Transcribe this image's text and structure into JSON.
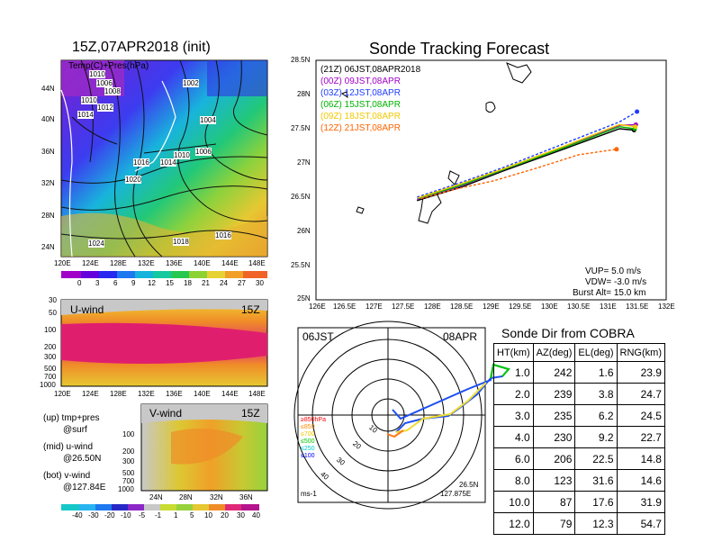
{
  "left": {
    "title": "15Z,07APR2018 (init)",
    "map_label": "Temp(C)+Pres(hPa)",
    "lat_labels": [
      "44N",
      "40N",
      "36N",
      "32N",
      "28N",
      "24N"
    ],
    "lon_labels": [
      "120E",
      "124E",
      "128E",
      "132E",
      "136E",
      "140E",
      "144E",
      "148E"
    ],
    "pressure_labels": [
      "1002",
      "1004",
      "1006",
      "1008",
      "1010",
      "1012",
      "1014",
      "1016",
      "1018",
      "1020",
      "1024",
      "1006",
      "1004",
      "1010",
      "1012",
      "1014",
      "1016",
      "1016"
    ],
    "temp_colorbar": [
      "0",
      "3",
      "6",
      "9",
      "12",
      "15",
      "18",
      "21",
      "24",
      "27",
      "30"
    ],
    "uwind_label": "U-wind",
    "uwind_time": "15Z",
    "vwind_label": "V-wind",
    "vwind_time": "15Z",
    "plev_labels": [
      "30",
      "50",
      "100",
      "200",
      "300",
      "500",
      "700",
      "1000"
    ],
    "vwind_plev_labels": [
      "100",
      "200",
      "300",
      "500",
      "700",
      "1000"
    ],
    "vwind_lat_labels": [
      "24N",
      "28N",
      "32N",
      "36N"
    ],
    "notes": [
      "(up) tmp+pres",
      "@surf",
      "(mid) u-wind",
      "@26.50N",
      "(bot) v-wind",
      "@127.84E"
    ],
    "wind_colorbar": [
      "-40",
      "-30",
      "-20",
      "-10",
      "-5",
      "-1",
      "1",
      "5",
      "10",
      "20",
      "30",
      "40"
    ]
  },
  "track": {
    "title": "Sonde Tracking Forecast",
    "lat_labels": [
      "28.5N",
      "28N",
      "27.5N",
      "27N",
      "26.5N",
      "26N",
      "25.5N",
      "25N"
    ],
    "lon_labels": [
      "126E",
      "126.5E",
      "127E",
      "127.5E",
      "128E",
      "128.5E",
      "129E",
      "129.5E",
      "130E",
      "130.5E",
      "131E",
      "131.5E",
      "132E"
    ],
    "legend": [
      {
        "text": "(21Z) 06JST,08APR2018",
        "color": "#000000"
      },
      {
        "text": "(00Z) 09JST,08APR",
        "color": "#a000c8"
      },
      {
        "text": "(03Z) 12JST,08APR",
        "color": "#1e3cff"
      },
      {
        "text": "(06Z) 15JST,08APR",
        "color": "#00b400"
      },
      {
        "text": "(09Z) 18JST,08APR",
        "color": "#f0c800"
      },
      {
        "text": "(12Z) 21JST,08APR",
        "color": "#ff6400"
      }
    ],
    "params": [
      "VUP= 5.0 m/s",
      "VDW= -3.0 m/s",
      "Burst Alt= 15.0 km"
    ]
  },
  "polar": {
    "time": "06JST",
    "date": "08APR",
    "unit": "ms-1",
    "lat": "26.5N",
    "lon": "127.875E",
    "ring_labels": [
      "10",
      "20",
      "30",
      "40"
    ],
    "level_legend": [
      {
        "text": "≥850hPa",
        "color": "#ff0000"
      },
      {
        "text": "≤850",
        "color": "#ff8c00"
      },
      {
        "text": "≤700",
        "color": "#f0c800"
      },
      {
        "text": "≤500",
        "color": "#00c800"
      },
      {
        "text": "≤250",
        "color": "#00c8c8"
      },
      {
        "text": "≤100",
        "color": "#0000ff"
      }
    ]
  },
  "table": {
    "title": "Sonde Dir from COBRA",
    "headers": [
      "HT(km)",
      "AZ(deg)",
      "EL(deg)",
      "RNG(km)"
    ],
    "rows": [
      [
        "1.0",
        "242",
        "1.6",
        "23.9"
      ],
      [
        "2.0",
        "239",
        "3.8",
        "24.7"
      ],
      [
        "3.0",
        "235",
        "6.2",
        "24.5"
      ],
      [
        "4.0",
        "230",
        "9.2",
        "22.7"
      ],
      [
        "6.0",
        "206",
        "22.5",
        "14.8"
      ],
      [
        "8.0",
        "123",
        "31.6",
        "14.6"
      ],
      [
        "10.0",
        "87",
        "17.6",
        "31.9"
      ],
      [
        "12.0",
        "79",
        "12.3",
        "54.7"
      ]
    ]
  },
  "chart_data": {
    "type": "line",
    "title": "Sonde Tracking Forecast",
    "xlim": [
      126,
      132
    ],
    "ylim": [
      25,
      28.5
    ],
    "series": [
      {
        "name": "(21Z) 06JST,08APR2018",
        "x": [
          127.73,
          128.5,
          129.2,
          130.3,
          131.2,
          131.45
        ],
        "y": [
          26.45,
          26.65,
          26.88,
          27.22,
          27.5,
          27.48
        ]
      },
      {
        "name": "(00Z) 09JST,08APR",
        "x": [
          127.73,
          128.5,
          129.2,
          130.3,
          131.2,
          131.48
        ],
        "y": [
          26.47,
          26.67,
          26.9,
          27.25,
          27.55,
          27.56
        ]
      },
      {
        "name": "(03Z) 12JST,08APR",
        "x": [
          127.73,
          128.5,
          129.2,
          130.3,
          131.2,
          131.5
        ],
        "y": [
          26.5,
          26.72,
          26.93,
          27.3,
          27.6,
          27.75
        ]
      },
      {
        "name": "(06Z) 15JST,08APR",
        "x": [
          127.75,
          128.5,
          129.2,
          130.3,
          131.2,
          131.46
        ],
        "y": [
          26.48,
          26.68,
          26.9,
          27.24,
          27.53,
          27.5
        ]
      },
      {
        "name": "(09Z) 18JST,08APR",
        "x": [
          127.75,
          128.5,
          129.2,
          130.3,
          131.2,
          131.47
        ],
        "y": [
          26.49,
          26.7,
          26.91,
          27.26,
          27.56,
          27.53
        ]
      },
      {
        "name": "(12Z) 21JST,08APR",
        "x": [
          127.8,
          128.4,
          129.05,
          129.8,
          130.5,
          131.15
        ],
        "y": [
          26.48,
          26.62,
          26.74,
          26.93,
          27.12,
          27.2
        ]
      }
    ]
  }
}
